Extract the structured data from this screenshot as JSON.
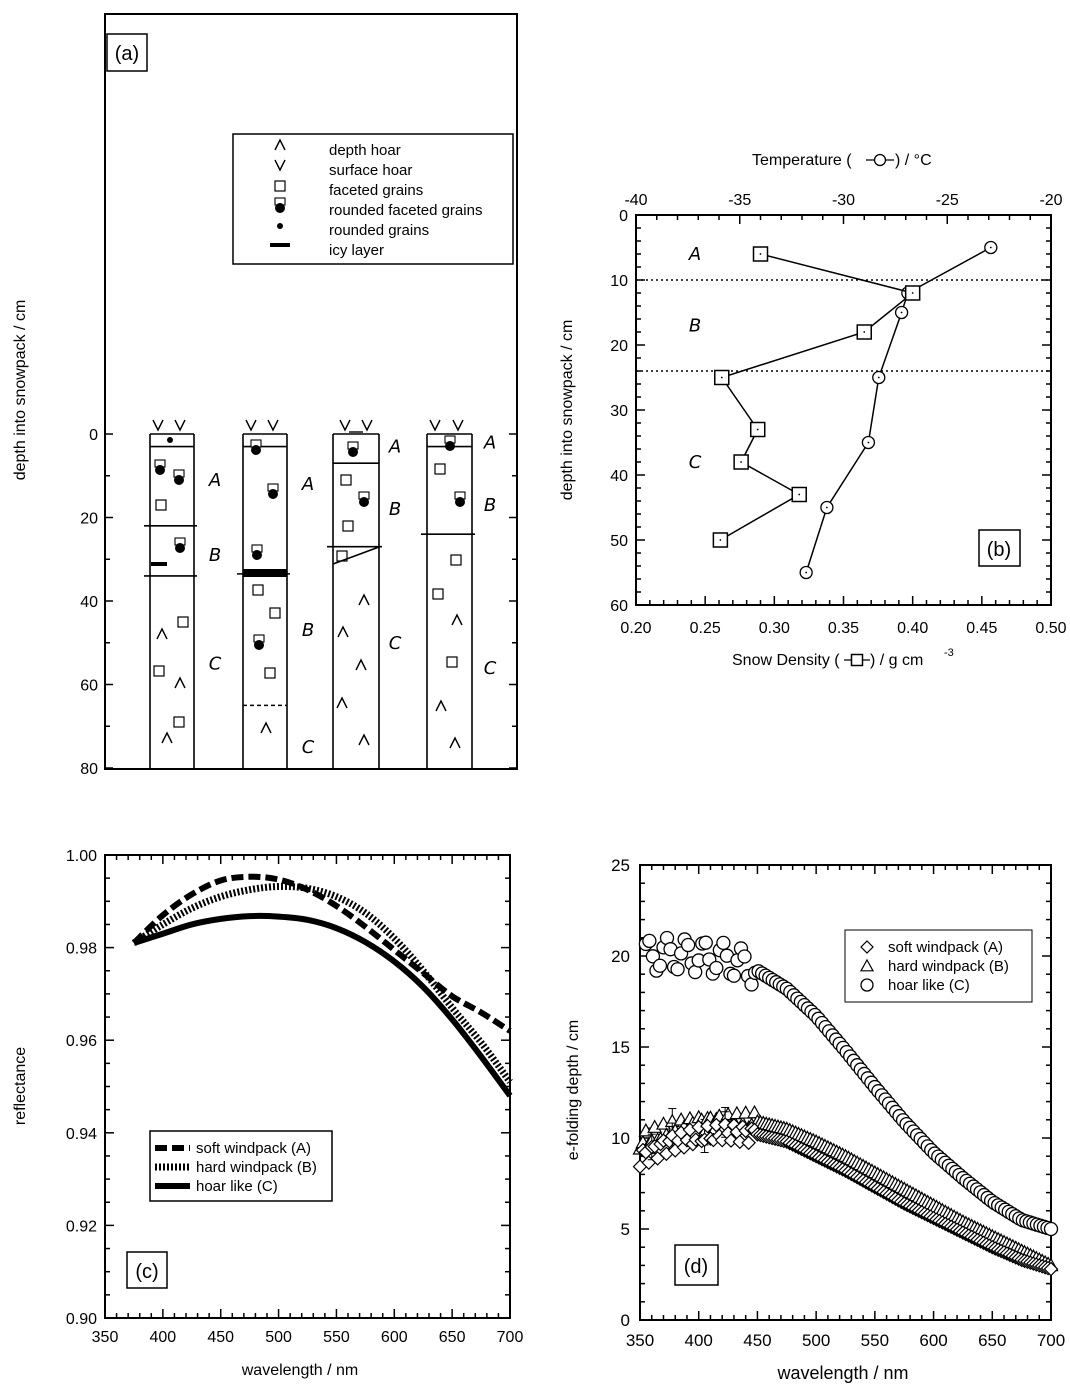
{
  "chart_data": [
    {
      "panel": "(a)",
      "type": "table",
      "ylabel": "depth into snowpack / cm",
      "yticks": [
        "0",
        "20",
        "40",
        "60",
        "80"
      ],
      "ylim": [
        0,
        80
      ],
      "legend": {
        "placement": "top-right",
        "entries": [
          {
            "symbol": "^",
            "label": "depth hoar"
          },
          {
            "symbol": "v",
            "label": "surface hoar"
          },
          {
            "symbol": "square",
            "label": "faceted grains"
          },
          {
            "symbol": "half-filled",
            "label": "rounded faceted grains"
          },
          {
            "symbol": "dot",
            "label": "rounded grains"
          },
          {
            "symbol": "bar",
            "label": "icy layer"
          }
        ]
      },
      "columns": [
        {
          "top_marks": "v v",
          "boundaries": [
            0,
            3,
            22,
            34
          ],
          "zones": [
            {
              "label": "A",
              "depth": 11
            },
            {
              "label": "B",
              "depth": 29
            },
            {
              "label": "C",
              "depth": 55
            }
          ]
        },
        {
          "top_marks": "v v",
          "boundaries": [
            0,
            3,
            33.5
          ],
          "dashed": [
            65
          ],
          "zones": [
            {
              "label": "A",
              "depth": 12
            },
            {
              "label": "B",
              "depth": 47
            },
            {
              "label": "C",
              "depth": 75
            }
          ]
        },
        {
          "top_marks": "v_v",
          "boundaries": [
            0,
            7,
            27
          ],
          "zones": [
            {
              "label": "A",
              "depth": 3
            },
            {
              "label": "B",
              "depth": 18
            },
            {
              "label": "C",
              "depth": 50
            }
          ]
        },
        {
          "top_marks": "v v",
          "boundaries": [
            0,
            3,
            24
          ],
          "zones": [
            {
              "label": "A",
              "depth": 2
            },
            {
              "label": "B",
              "depth": 17
            },
            {
              "label": "C",
              "depth": 56
            }
          ]
        }
      ]
    },
    {
      "panel": "(b)",
      "type": "line",
      "ylabel": "depth into snowpack / cm",
      "ylim": [
        0,
        60
      ],
      "yticks": [
        "0",
        "10",
        "20",
        "30",
        "40",
        "50",
        "60"
      ],
      "top_axis": {
        "label": "Temperature (",
        "label_suffix": ") / °C",
        "xlim": [
          -40,
          -20
        ],
        "ticks": [
          "-40",
          "-35",
          "-30",
          "-25",
          "-20"
        ]
      },
      "bottom_axis": {
        "label": "Snow Density (",
        "label_suffix": ") / g cm",
        "exponent": "-3",
        "xlim": [
          0.2,
          0.5
        ],
        "ticks": [
          "0.20",
          "0.25",
          "0.30",
          "0.35",
          "0.40",
          "0.45",
          "0.50"
        ]
      },
      "layer_lines": [
        10,
        24
      ],
      "zones": [
        {
          "label": "A",
          "depth": 6
        },
        {
          "label": "B",
          "depth": 17
        },
        {
          "label": "C",
          "depth": 38
        }
      ],
      "series": [
        {
          "axis": "top",
          "marker": "circle",
          "points": [
            [
              -22.9,
              5
            ],
            [
              -26.9,
              12
            ],
            [
              -27.2,
              15
            ],
            [
              -28.3,
              25
            ],
            [
              -28.8,
              35
            ],
            [
              -30.8,
              45
            ],
            [
              -31.8,
              55
            ]
          ]
        },
        {
          "axis": "bottom",
          "marker": "square",
          "points": [
            [
              0.29,
              6
            ],
            [
              0.4,
              12
            ],
            [
              0.365,
              18
            ],
            [
              0.262,
              25
            ],
            [
              0.288,
              33
            ],
            [
              0.276,
              38
            ],
            [
              0.318,
              43
            ],
            [
              0.261,
              50
            ]
          ]
        }
      ]
    },
    {
      "panel": "(c)",
      "type": "line",
      "xlabel": "wavelength / nm",
      "ylabel": "reflectance",
      "xlim": [
        350,
        700
      ],
      "ylim": [
        0.9,
        1.0
      ],
      "xticks": [
        "350",
        "400",
        "450",
        "500",
        "550",
        "600",
        "650",
        "700"
      ],
      "yticks": [
        "0.90",
        "0.92",
        "0.94",
        "0.96",
        "0.98",
        "1.00"
      ],
      "legend_placement": "bottom-left",
      "series": [
        {
          "name": "soft windpack (A)",
          "style": "dashed",
          "x": [
            375,
            400,
            425,
            450,
            475,
            500,
            525,
            550,
            575,
            600,
            625,
            650,
            675,
            700
          ],
          "values": [
            0.981,
            0.987,
            0.9915,
            0.9945,
            0.9953,
            0.9947,
            0.9925,
            0.989,
            0.9845,
            0.9795,
            0.9745,
            0.9695,
            0.966,
            0.962
          ]
        },
        {
          "name": "hard windpack (B)",
          "style": "dotted",
          "x": [
            375,
            400,
            425,
            450,
            475,
            500,
            525,
            550,
            575,
            600,
            625,
            650,
            675,
            700
          ],
          "values": [
            0.981,
            0.985,
            0.9885,
            0.991,
            0.9925,
            0.9932,
            0.9928,
            0.991,
            0.9875,
            0.982,
            0.975,
            0.967,
            0.9595,
            0.951
          ]
        },
        {
          "name": "hoar like (C)",
          "style": "solid",
          "x": [
            375,
            400,
            425,
            450,
            475,
            500,
            525,
            550,
            575,
            600,
            625,
            650,
            675,
            700
          ],
          "values": [
            0.981,
            0.983,
            0.985,
            0.9862,
            0.9868,
            0.9867,
            0.986,
            0.9842,
            0.9812,
            0.977,
            0.9715,
            0.9645,
            0.9565,
            0.948
          ]
        }
      ]
    },
    {
      "panel": "(d)",
      "type": "scatter",
      "xlabel": "wavelength / nm",
      "ylabel": "e-folding depth / cm",
      "xlim": [
        350,
        700
      ],
      "ylim": [
        0,
        25
      ],
      "xticks": [
        "350",
        "400",
        "450",
        "500",
        "550",
        "600",
        "650",
        "700"
      ],
      "yticks": [
        "0",
        "5",
        "10",
        "15",
        "20",
        "25"
      ],
      "legend_placement": "top-right",
      "series": [
        {
          "name": "soft windpack (A)",
          "marker": "diamond",
          "x": [
            350,
            375,
            400,
            425,
            450,
            475,
            500,
            525,
            550,
            575,
            600,
            625,
            650,
            675,
            700
          ],
          "values": [
            8.9,
            9.7,
            10.1,
            10.3,
            10.2,
            9.8,
            9.0,
            8.2,
            7.3,
            6.4,
            5.6,
            4.8,
            4.0,
            3.3,
            2.8
          ]
        },
        {
          "name": "hard windpack (B)",
          "marker": "triangle",
          "x": [
            350,
            375,
            400,
            425,
            450,
            475,
            500,
            525,
            550,
            575,
            600,
            625,
            650,
            675,
            700
          ],
          "values": [
            9.8,
            10.4,
            10.8,
            10.9,
            10.9,
            10.5,
            9.8,
            9.0,
            8.1,
            7.2,
            6.3,
            5.4,
            4.6,
            3.8,
            3.0
          ]
        },
        {
          "name": "hoar like (C)",
          "marker": "circle",
          "x": [
            355,
            375,
            400,
            425,
            450,
            475,
            500,
            525,
            550,
            575,
            600,
            625,
            650,
            675,
            700
          ],
          "values": [
            20.0,
            20.1,
            20.0,
            19.8,
            19.2,
            18.2,
            16.7,
            14.8,
            12.8,
            10.9,
            9.2,
            7.8,
            6.5,
            5.5,
            5.0
          ]
        }
      ]
    }
  ],
  "panels": {
    "a": {
      "label": "(a)"
    },
    "b": {
      "label": "(b)"
    },
    "c": {
      "label": "(c)"
    },
    "d": {
      "label": "(d)"
    }
  }
}
